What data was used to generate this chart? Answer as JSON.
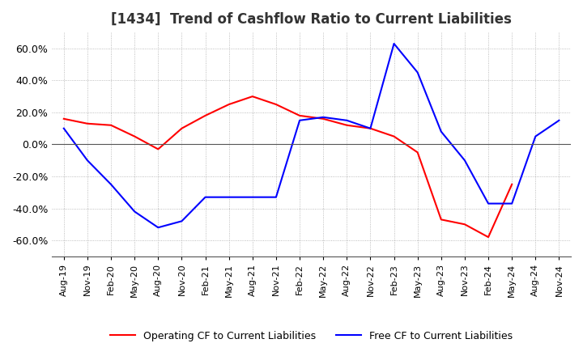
{
  "title": "[1434]  Trend of Cashflow Ratio to Current Liabilities",
  "x_labels": [
    "Aug-19",
    "Nov-19",
    "Feb-20",
    "May-20",
    "Aug-20",
    "Nov-20",
    "Feb-21",
    "May-21",
    "Aug-21",
    "Nov-21",
    "Feb-22",
    "May-22",
    "Aug-22",
    "Nov-22",
    "Feb-23",
    "May-23",
    "Aug-23",
    "Nov-23",
    "Feb-24",
    "May-24",
    "Aug-24",
    "Nov-24"
  ],
  "operating_cf": [
    0.16,
    0.13,
    0.12,
    0.05,
    -0.03,
    0.1,
    0.18,
    0.25,
    0.3,
    0.25,
    0.18,
    0.16,
    0.12,
    0.1,
    0.05,
    -0.05,
    -0.47,
    -0.5,
    -0.58,
    -0.25,
    null,
    null
  ],
  "free_cf": [
    0.1,
    -0.1,
    -0.25,
    -0.42,
    -0.52,
    -0.48,
    -0.33,
    -0.33,
    -0.33,
    -0.33,
    0.15,
    0.17,
    0.15,
    0.1,
    0.63,
    0.45,
    0.08,
    -0.1,
    -0.37,
    -0.37,
    0.05,
    0.15
  ],
  "ylim": [
    -0.7,
    0.7
  ],
  "yticks": [
    -0.6,
    -0.4,
    -0.2,
    0.0,
    0.2,
    0.4,
    0.6
  ],
  "operating_color": "#ff0000",
  "free_color": "#0000ff",
  "grid_color": "#aaaaaa",
  "background_color": "#ffffff",
  "legend_operating": "Operating CF to Current Liabilities",
  "legend_free": "Free CF to Current Liabilities"
}
